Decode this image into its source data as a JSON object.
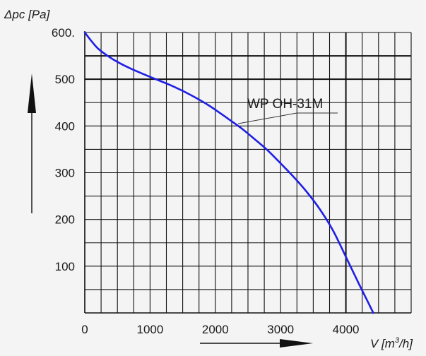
{
  "chart_data": {
    "type": "line",
    "ylabel": "Δpc [Pa]",
    "xlabel_main": "V [m",
    "xlabel_sup": "3",
    "xlabel_end": "/h]",
    "xlim": [
      0,
      5000
    ],
    "ylim": [
      0,
      600
    ],
    "x_ticks": [
      0,
      1000,
      2000,
      3000,
      4000
    ],
    "x_tick_labels": [
      "0",
      "1000",
      "2000",
      "3000",
      "4000"
    ],
    "y_ticks": [
      100,
      200,
      300,
      400,
      500,
      600
    ],
    "y_tick_labels": [
      "100",
      "200",
      "300",
      "400",
      "500",
      "600."
    ],
    "grid": true,
    "series": [
      {
        "name": "WP OH-31M",
        "color": "#1f1fe6",
        "x": [
          0,
          100,
          200,
          350,
          500,
          700,
          1000,
          1300,
          1600,
          1900,
          2200,
          2400,
          2600,
          2800,
          3000,
          3200,
          3400,
          3600,
          3800,
          4000,
          4200,
          4350,
          4420
        ],
        "y": [
          600,
          582,
          566,
          550,
          537,
          523,
          505,
          488,
          468,
          444,
          415,
          395,
          372,
          348,
          320,
          291,
          259,
          222,
          177,
          120,
          62,
          20,
          0
        ]
      }
    ],
    "annotations": [
      {
        "text": "WP OH-31M",
        "x": 2350,
        "y": 405
      }
    ]
  }
}
